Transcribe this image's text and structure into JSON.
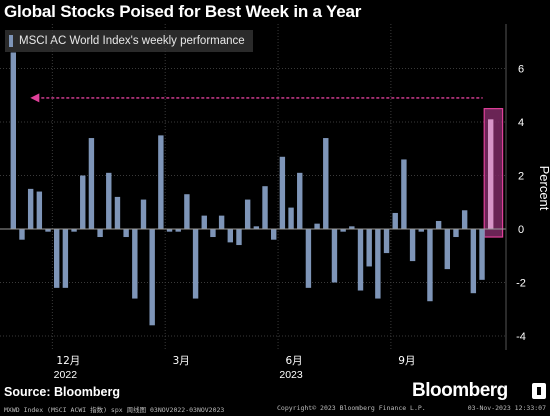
{
  "title": "Global Stocks Poised for Best Week in a Year",
  "legend_label": "MSCI AC World Index's weekly performance",
  "source": "Source: Bloomberg",
  "logo": "Bloomberg",
  "footer": {
    "left": "MXWD Index (MSCI ACWI 指数) spx  周线图 03NOV2022-03NOV2023",
    "center": "Copyright© 2023 Bloomberg Finance L.P.",
    "right": "03-Nov-2023 12:33:07"
  },
  "colors": {
    "bar": "#7e95b8",
    "highlight_bar": "#d896c8",
    "highlight_box": "#7c2a64",
    "highlight_border": "#e0409a",
    "arrow": "#e0409a",
    "grid": "#3a3a3a",
    "zero_line": "#9a9a9a",
    "background": "#000000"
  },
  "chart_data": {
    "type": "bar",
    "title": "Global Stocks Poised for Best Week in a Year",
    "ylabel": "Percent",
    "ylim": [
      -4.5,
      7.5
    ],
    "y_ticks": [
      -4,
      -2,
      0,
      2,
      4,
      6
    ],
    "x_ticks": [
      {
        "label": "12月",
        "year": "2022",
        "index": 5
      },
      {
        "label": "3月",
        "year": "",
        "index": 18
      },
      {
        "label": "6月",
        "year": "2023",
        "index": 31
      },
      {
        "label": "9月",
        "year": "",
        "index": 44
      }
    ],
    "series": [
      {
        "values": [
          6.6,
          -0.4,
          1.5,
          1.4,
          -0.1,
          -2.2,
          -2.2,
          -0.1,
          2.0,
          3.4,
          -0.3,
          2.1,
          1.2,
          -0.3,
          -2.6,
          1.1,
          -3.6,
          3.5,
          -0.1,
          -0.1,
          1.3,
          -2.6,
          0.5,
          -0.3,
          0.5,
          -0.5,
          -0.6,
          1.1,
          0.1,
          1.6,
          -0.4,
          2.7,
          0.8,
          2.1,
          -2.2,
          0.2,
          3.4,
          -2.0,
          -0.1,
          0.1,
          -2.3,
          -1.4,
          -2.6,
          -0.9,
          0.6,
          2.6,
          -1.2,
          -0.1,
          -2.7,
          0.3,
          -1.5,
          -0.3,
          0.7,
          -2.4,
          -1.9,
          4.1
        ]
      }
    ],
    "highlight_index": 55,
    "annotations": [
      {
        "type": "dashed-arrow",
        "from_index": 55,
        "to_index": 0,
        "value": 4.9
      }
    ]
  }
}
